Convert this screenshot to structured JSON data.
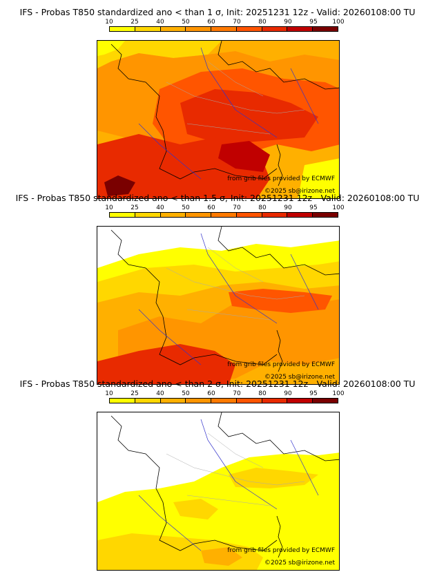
{
  "colorbar": {
    "ticks": [
      "10",
      "25",
      "40",
      "50",
      "60",
      "70",
      "80",
      "90",
      "95",
      "100"
    ],
    "colors": [
      "#ffff00",
      "#ffd700",
      "#ffb000",
      "#ff9500",
      "#ff7a00",
      "#ff5500",
      "#e82a00",
      "#c00000",
      "#7a0000"
    ]
  },
  "panels": [
    {
      "title": "IFS - Probas T850  standardized ano < than 1 σ, Init: 20251231 12z - Valid: 20260108:00 TU",
      "threshold_sigma": "1",
      "provider_credit": "from grib files provided by ECMWF",
      "copyright": "©2025 sb@irizone.net",
      "dominant_band": "70-90"
    },
    {
      "title": "IFS - Probas T850  standardized ano < than 1.5 σ, Init: 20251231 12z - Valid: 20260108:00 TU",
      "threshold_sigma": "1.5",
      "provider_credit": "from grib files provided by ECMWF",
      "copyright": "©2025 sb@irizone.net",
      "dominant_band": "25-70"
    },
    {
      "title": "IFS - Probas T850  standardized ano < than 2 σ, Init: 20251231 12z - Valid: 20260108:00 TU",
      "threshold_sigma": "2",
      "provider_credit": "from grib files provided by ECMWF",
      "copyright": "©2025 sb@irizone.net",
      "dominant_band": "10-40"
    }
  ]
}
